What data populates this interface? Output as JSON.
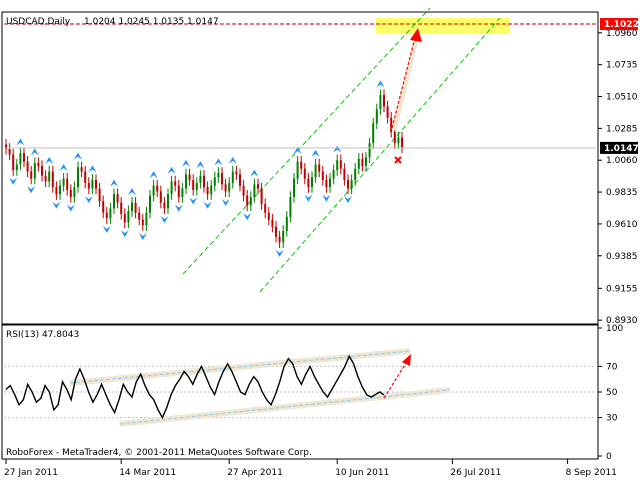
{
  "header": {
    "symbol": "USDCAD,Daily",
    "ohlc": "1.0204 1.0245 1.0135 1.0147"
  },
  "rsi_header": {
    "label": "RSI(13) 47.8043"
  },
  "footer": {
    "copyright": "RoboForex - MetaTrader4, © 2001-2011 MetaQuotes Software Corp."
  },
  "colors": {
    "bull": "#008000",
    "bear": "#c00000",
    "fractal": "#1e90ff",
    "channel": "#00cc00",
    "forecast": "#ff0000",
    "target_zone": "#ffff66",
    "rsi_line": "#000000",
    "rsi_channel": "#87cefa",
    "tag_bg": "#000000",
    "target_tag_bg": "#ff0000"
  },
  "chart_data": [
    {
      "type": "candlestick",
      "title": "USDCAD,Daily",
      "ylim": [
        0.891,
        1.11
      ],
      "y_ticks": [
        "1.0960",
        "1.0735",
        "1.0510",
        "1.0285",
        "1.0060",
        "0.9835",
        "0.9610",
        "0.9385",
        "0.9155",
        "0.8930"
      ],
      "y_tick_values": [
        1.096,
        1.0735,
        1.051,
        1.0285,
        1.006,
        0.9835,
        0.961,
        0.9385,
        0.9155,
        0.893
      ],
      "x_ticks": [
        "27 Jan 2011",
        "14 Mar 2011",
        "27 Apr 2011",
        "10 Jun 2011",
        "26 Jul 2011",
        "8 Sep 2011"
      ],
      "x_tick_bar_index": [
        0,
        32,
        62,
        92,
        124,
        156
      ],
      "current_price": "1.0147",
      "target_level": "1.1022",
      "closes": [
        1.014,
        1.01,
        0.999,
        1.003,
        1.011,
        1.005,
        0.998,
        0.993,
        1.004,
        1.002,
        0.995,
        0.991,
        0.998,
        0.987,
        0.982,
        0.988,
        0.993,
        0.985,
        0.98,
        0.987,
        1.001,
        0.998,
        0.99,
        0.986,
        0.992,
        0.986,
        0.977,
        0.969,
        0.965,
        0.972,
        0.982,
        0.976,
        0.968,
        0.962,
        0.97,
        0.976,
        0.969,
        0.964,
        0.96,
        0.969,
        0.981,
        0.988,
        0.984,
        0.976,
        0.972,
        0.982,
        0.991,
        0.988,
        0.98,
        0.986,
        0.996,
        0.992,
        0.985,
        0.99,
        0.995,
        0.987,
        0.982,
        0.988,
        0.994,
        0.997,
        0.989,
        0.984,
        0.99,
        0.998,
        0.996,
        0.988,
        0.981,
        0.974,
        0.98,
        0.989,
        0.986,
        0.975,
        0.969,
        0.964,
        0.959,
        0.952,
        0.948,
        0.956,
        0.966,
        0.98,
        0.993,
        1.005,
        1.0,
        0.993,
        0.987,
        0.994,
        1.003,
        0.998,
        0.992,
        0.987,
        0.993,
        0.999,
        1.006,
        1.0,
        0.992,
        0.986,
        0.992,
        1.0,
        1.007,
        1.002,
        1.008,
        1.018,
        1.032,
        1.042,
        1.052,
        1.044,
        1.036,
        1.026,
        1.018,
        1.022,
        1.015
      ]
    },
    {
      "type": "line",
      "title": "RSI(13) 47.8043",
      "ylim": [
        0,
        100
      ],
      "y_ticks": [
        "100",
        "70",
        "50",
        "30",
        "0"
      ],
      "y_tick_values": [
        100,
        70,
        50,
        30,
        0
      ],
      "series": [
        {
          "values": [
            52,
            55,
            48,
            40,
            44,
            56,
            50,
            42,
            45,
            55,
            50,
            36,
            40,
            58,
            52,
            44,
            60,
            68,
            60,
            50,
            42,
            48,
            56,
            48,
            40,
            34,
            44,
            56,
            50,
            46,
            58,
            64,
            55,
            48,
            44,
            36,
            30,
            38,
            48,
            55,
            60,
            66,
            62,
            56,
            64,
            70,
            62,
            54,
            48,
            58,
            66,
            72,
            66,
            58,
            50,
            48,
            56,
            62,
            58,
            50,
            44,
            40,
            48,
            58,
            70,
            76,
            72,
            62,
            56,
            64,
            70,
            62,
            56,
            50,
            46,
            52,
            58,
            64,
            70,
            78,
            72,
            62,
            54,
            48,
            46,
            48,
            50,
            47.8
          ]
        }
      ]
    }
  ]
}
